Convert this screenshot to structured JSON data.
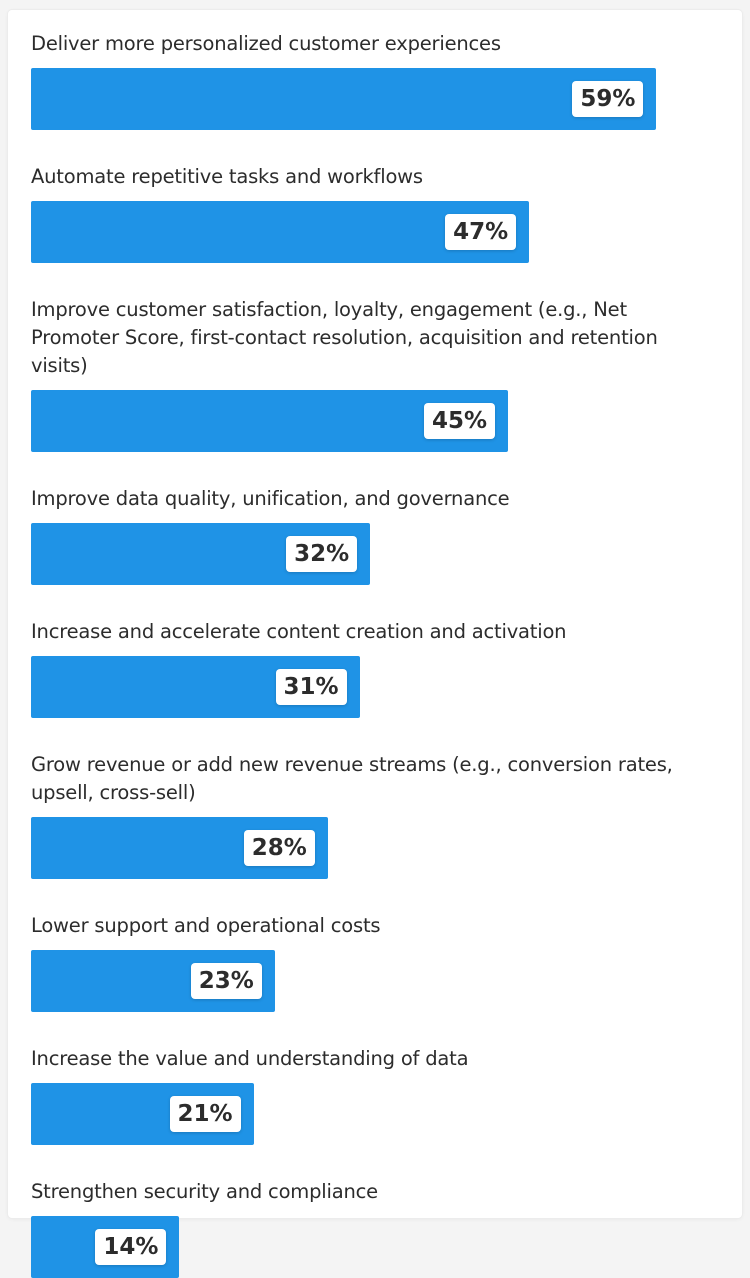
{
  "chart_data": {
    "type": "bar",
    "orientation": "horizontal",
    "xlim": [
      0,
      100
    ],
    "bar_color": "#1f93e6",
    "categories": [
      "Deliver more personalized customer experiences",
      "Automate repetitive tasks and workflows",
      "Improve customer satisfaction, loyalty, engagement (e.g., Net Promoter Score, first-contact resolution, acquisition and retention visits)",
      "Improve data quality, unification, and governance",
      "Increase and accelerate content creation and activation",
      "Grow revenue or add new revenue streams (e.g., conversion rates, upsell, cross-sell)",
      "Lower support and operational costs",
      "Increase the value and understanding of data",
      "Strengthen security and compliance"
    ],
    "values": [
      59,
      47,
      45,
      32,
      31,
      28,
      23,
      21,
      14
    ],
    "value_labels": [
      "59%",
      "47%",
      "45%",
      "32%",
      "31%",
      "28%",
      "23%",
      "21%",
      "14%"
    ]
  }
}
